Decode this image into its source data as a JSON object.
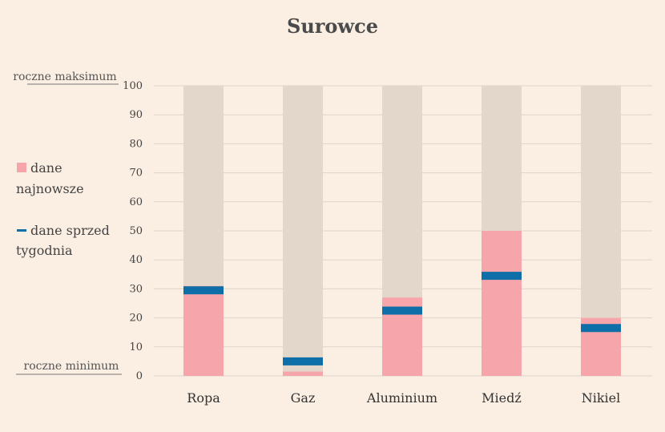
{
  "chart_data": {
    "type": "bar",
    "title": "Surowce",
    "categories": [
      "Ropa",
      "Gaz",
      "Aluminium",
      "Miedź",
      "Nikiel"
    ],
    "ylim": [
      0,
      100
    ],
    "yticks": [
      0,
      10,
      20,
      30,
      40,
      50,
      60,
      70,
      80,
      90,
      100
    ],
    "range_labels": {
      "max": "roczne maksimum",
      "min": "roczne minimum"
    },
    "series": [
      {
        "values": [
          31,
          1.5,
          27,
          50,
          20
        ]
      },
      {
        "values": [
          29.5,
          5,
          22.5,
          34.5,
          16.5
        ]
      }
    ],
    "legend": {
      "latest_label_1": "dane",
      "latest_label_2": "najnowsze",
      "prev_label_1": "dane sprzed",
      "prev_label_2": "tygodnia"
    },
    "grid": true,
    "colors": {
      "background": "#fbeee2",
      "range_bar": "#e3d7cc",
      "latest": "#f6a5ab",
      "previous": "#0e6ea8",
      "grid": "#dcd4cc"
    }
  }
}
